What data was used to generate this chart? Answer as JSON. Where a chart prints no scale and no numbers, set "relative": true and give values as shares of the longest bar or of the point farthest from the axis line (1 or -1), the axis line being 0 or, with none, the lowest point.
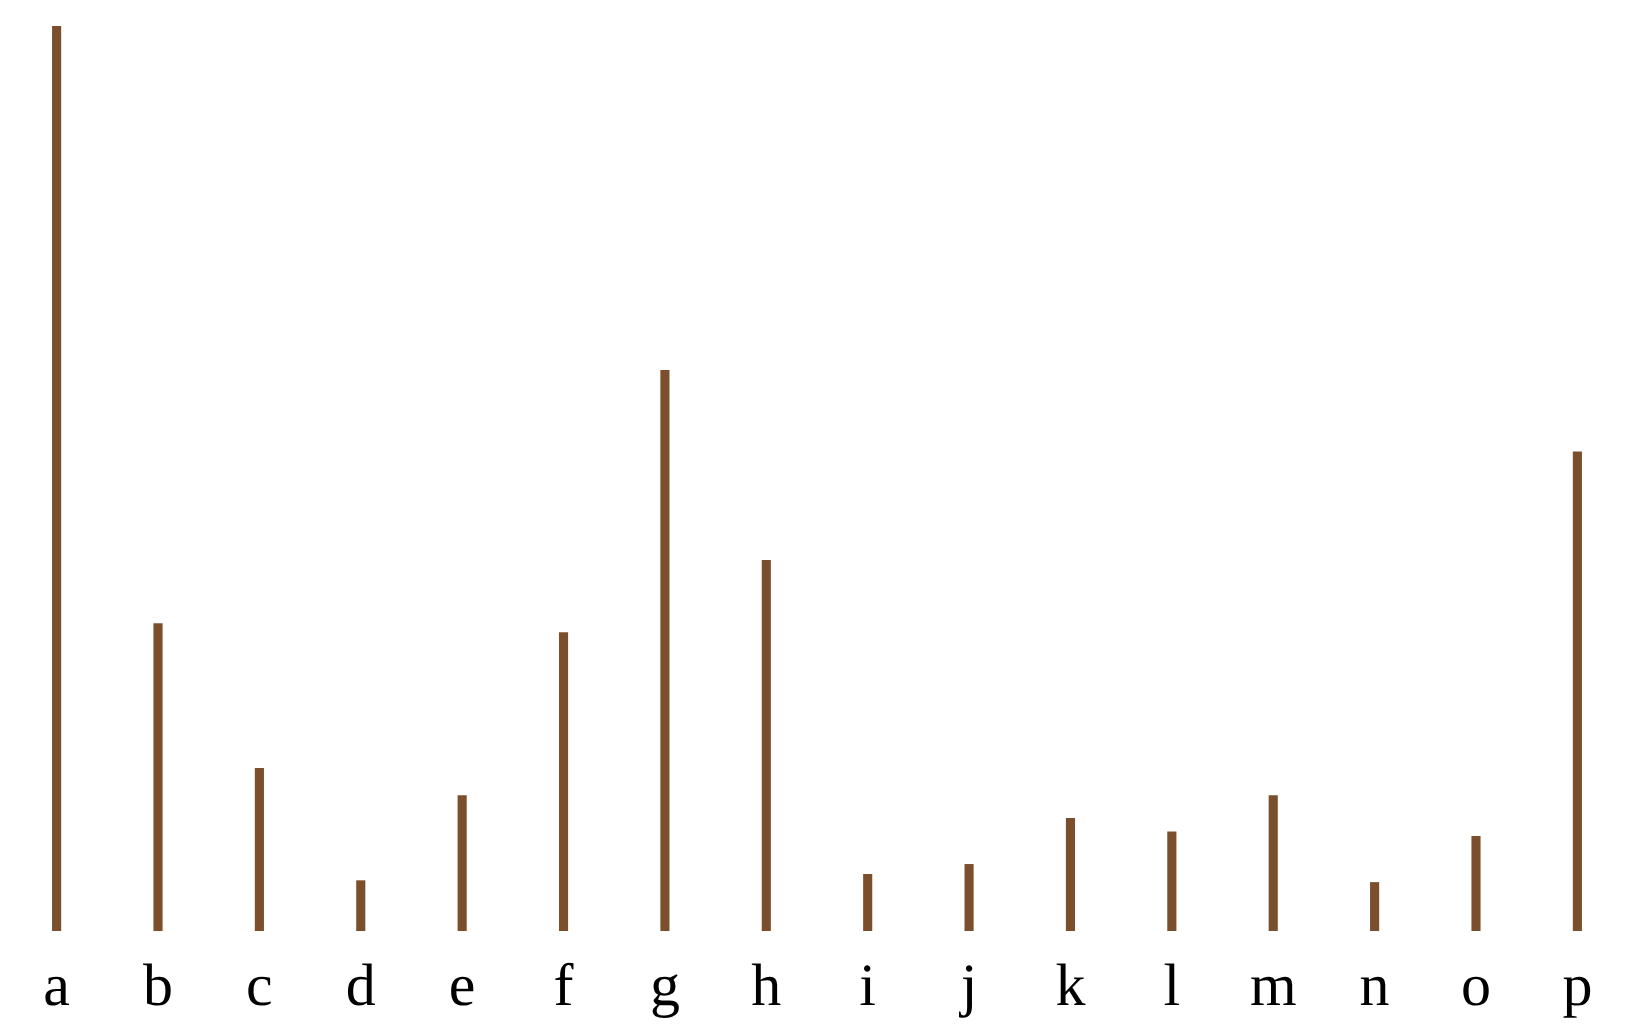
{
  "chart_data": {
    "type": "bar",
    "relative": true,
    "categories": [
      "a",
      "b",
      "c",
      "d",
      "e",
      "f",
      "g",
      "h",
      "i",
      "j",
      "k",
      "l",
      "m",
      "n",
      "o",
      "p"
    ],
    "values": [
      1,
      0.34,
      0.18,
      0.056,
      0.15,
      0.33,
      0.62,
      0.41,
      0.063,
      0.074,
      0.125,
      0.11,
      0.15,
      0.054,
      0.105,
      0.53
    ],
    "color": "#7b4f2c"
  }
}
